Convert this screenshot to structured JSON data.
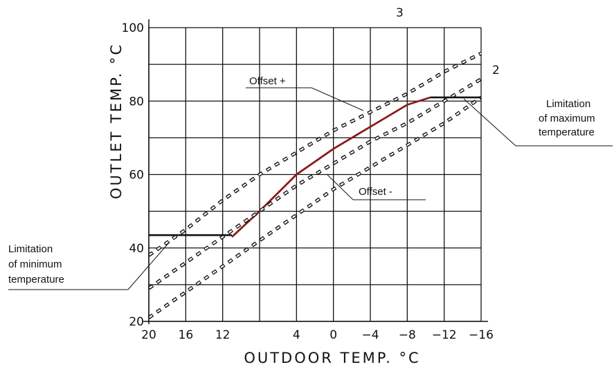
{
  "chart_data": {
    "type": "line",
    "xlabel": "OUTDOOR  TEMP. °C",
    "ylabel": "OUTLET  TEMP. °C",
    "x_ticks": [
      "20",
      "16",
      "12",
      "4",
      "0",
      "-4",
      "-8",
      "-12",
      "-16"
    ],
    "y_ticks": [
      "20",
      "40",
      "60",
      "80",
      "100"
    ],
    "xlim": [
      20,
      -16
    ],
    "ylim": [
      20,
      100
    ],
    "grid": true,
    "series": [
      {
        "name": "",
        "style": "solid",
        "color": "#8b1a1a",
        "x": [
          11,
          8,
          4,
          0,
          -4,
          -8,
          -10.5
        ],
        "y": [
          43,
          50,
          60,
          67,
          73,
          79,
          81
        ]
      },
      {
        "name": "3",
        "style": "dashed",
        "x": [
          20,
          16,
          12,
          8,
          4,
          0,
          -4,
          -8,
          -12,
          -16
        ],
        "y": [
          38,
          45,
          53,
          60,
          66,
          72,
          77,
          82,
          88,
          93
        ]
      },
      {
        "name": "2",
        "style": "dashed",
        "x": [
          20,
          16,
          12,
          8,
          4,
          0,
          -4,
          -8,
          -12,
          -16
        ],
        "y": [
          29,
          36,
          43,
          50,
          57,
          63,
          69,
          74,
          80,
          86
        ]
      },
      {
        "name": "",
        "style": "dashed",
        "x": [
          20,
          16,
          12,
          8,
          4,
          0,
          -4,
          -8,
          -12,
          -16
        ],
        "y": [
          21,
          28,
          35,
          42,
          49,
          56,
          62,
          68,
          74,
          81
        ]
      }
    ],
    "limits": [
      {
        "label": "Limitation of maximum temperature",
        "lines": [
          "Limitation",
          "of maximum",
          "temperature"
        ],
        "value": 81,
        "x": [
          -10.5,
          -16
        ]
      },
      {
        "label": "Limitation of minimum temperature",
        "lines": [
          "Limitation",
          "of minimum",
          "temperature"
        ],
        "value": 43.5,
        "x": [
          20,
          11
        ]
      }
    ],
    "annotations": {
      "offset_plus": "Offset +",
      "offset_minus": "Offset -",
      "curve_3": "3",
      "curve_2": "2"
    }
  }
}
